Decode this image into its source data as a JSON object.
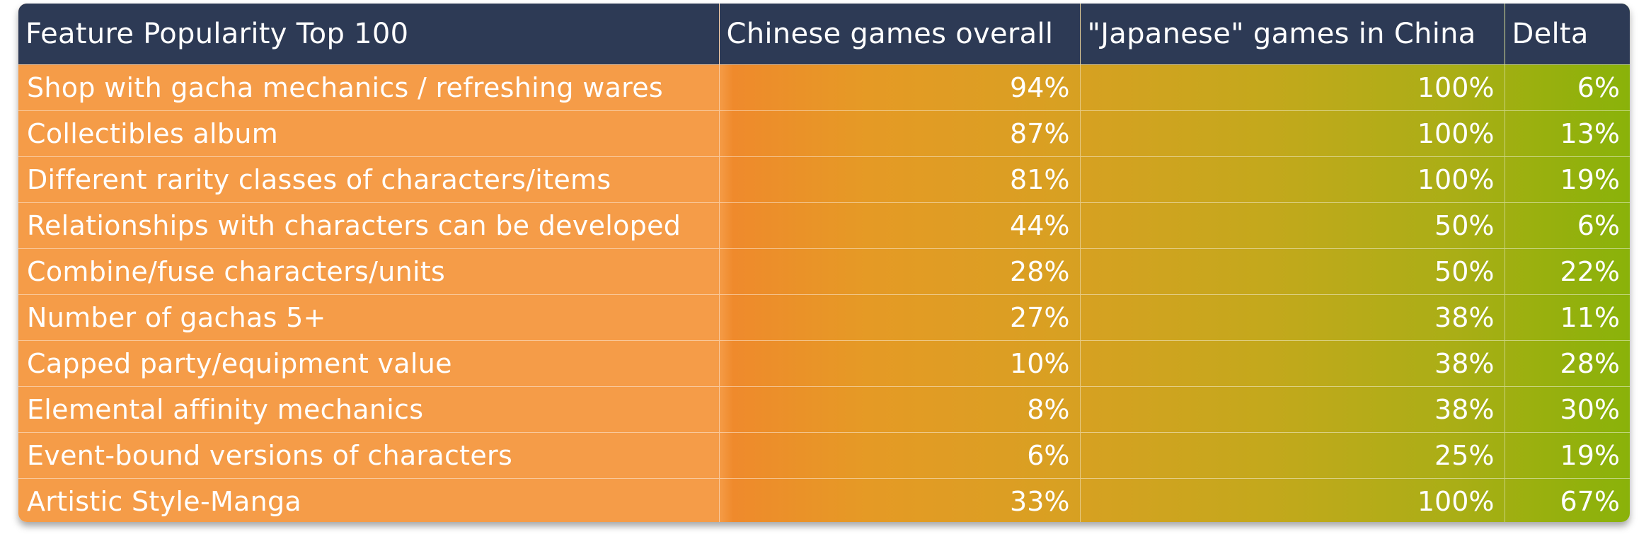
{
  "table": {
    "headers": [
      "Feature Popularity Top 100",
      "Chinese games overall",
      "\"Japanese\" games in China",
      "Delta"
    ],
    "rows": [
      {
        "feature": "Shop with gacha mechanics / refreshing wares",
        "chinese": "94%",
        "japanese": "100%",
        "delta": "6%"
      },
      {
        "feature": "Collectibles album",
        "chinese": "87%",
        "japanese": "100%",
        "delta": "13%"
      },
      {
        "feature": "Different rarity classes of characters/items",
        "chinese": "81%",
        "japanese": "100%",
        "delta": "19%"
      },
      {
        "feature": "Relationships with characters can be developed",
        "chinese": "44%",
        "japanese": "50%",
        "delta": "6%"
      },
      {
        "feature": "Combine/fuse characters/units",
        "chinese": "28%",
        "japanese": "50%",
        "delta": "22%"
      },
      {
        "feature": "Number of gachas 5+",
        "chinese": "27%",
        "japanese": "38%",
        "delta": "11%"
      },
      {
        "feature": "Capped party/equipment value",
        "chinese": "10%",
        "japanese": "38%",
        "delta": "28%"
      },
      {
        "feature": "Elemental affinity mechanics",
        "chinese": "8%",
        "japanese": "38%",
        "delta": "30%"
      },
      {
        "feature": "Event-bound versions of characters",
        "chinese": "6%",
        "japanese": "25%",
        "delta": "19%"
      },
      {
        "feature": "Artistic Style-Manga",
        "chinese": "33%",
        "japanese": "100%",
        "delta": "67%"
      }
    ]
  },
  "colors": {
    "header_bg": "#2d3a55",
    "orange": "#f59c48",
    "green": "#8ab20a",
    "text": "#ffffff"
  }
}
